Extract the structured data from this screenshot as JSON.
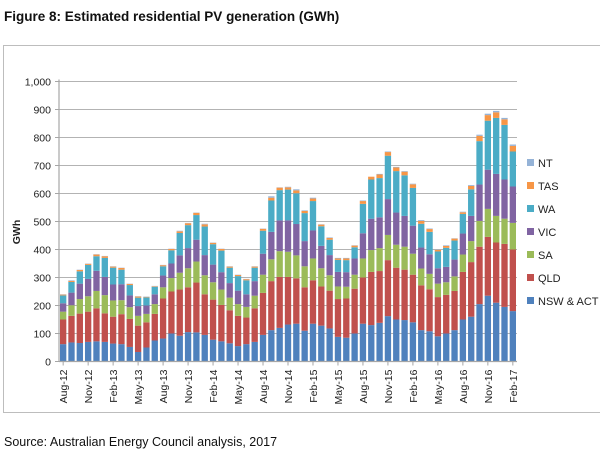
{
  "figure_title": "Figure 8: Estimated residential PV generation (GWh)",
  "source": "Source: Australian Energy Council analysis, 2017",
  "chart_data": {
    "type": "bar",
    "stacked": true,
    "title": "Figure 8: Estimated residential PV generation (GWh)",
    "xlabel": "",
    "ylabel": "GWh",
    "ylim": [
      0,
      1000
    ],
    "yticks": [
      0,
      100,
      200,
      300,
      400,
      500,
      600,
      700,
      800,
      900,
      1000
    ],
    "ytick_labels": [
      "0",
      "100",
      "200",
      "300",
      "400",
      "500",
      "600",
      "700",
      "800",
      "900",
      "1,000"
    ],
    "grid": true,
    "legend_position": "right",
    "categories": [
      "Aug-12",
      "Sep-12",
      "Oct-12",
      "Nov-12",
      "Dec-12",
      "Jan-13",
      "Feb-13",
      "Mar-13",
      "Apr-13",
      "May-13",
      "Jun-13",
      "Jul-13",
      "Aug-13",
      "Sep-13",
      "Oct-13",
      "Nov-13",
      "Dec-13",
      "Jan-14",
      "Feb-14",
      "Mar-14",
      "Apr-14",
      "May-14",
      "Jun-14",
      "Jul-14",
      "Aug-14",
      "Sep-14",
      "Oct-14",
      "Nov-14",
      "Dec-14",
      "Jan-15",
      "Feb-15",
      "Mar-15",
      "Apr-15",
      "May-15",
      "Jun-15",
      "Jul-15",
      "Aug-15",
      "Sep-15",
      "Oct-15",
      "Nov-15",
      "Dec-15",
      "Jan-16",
      "Feb-16",
      "Mar-16",
      "Apr-16",
      "May-16",
      "Jun-16",
      "Jul-16",
      "Aug-16",
      "Sep-16",
      "Oct-16",
      "Nov-16",
      "Dec-16",
      "Jan-17",
      "Feb-17"
    ],
    "xtick_labels": [
      "Aug-12",
      "Nov-12",
      "Feb-13",
      "May-13",
      "Aug-13",
      "Nov-13",
      "Feb-14",
      "May-14",
      "Aug-14",
      "Nov-14",
      "Feb-15",
      "May-15",
      "Aug-15",
      "Nov-15",
      "Feb-16",
      "May-16",
      "Aug-16",
      "Nov-16",
      "Feb-17"
    ],
    "series": [
      {
        "name": "NSW & ACT",
        "color": "#4f81bd",
        "values": [
          62,
          68,
          66,
          70,
          72,
          70,
          64,
          62,
          52,
          34,
          50,
          75,
          82,
          100,
          92,
          105,
          104,
          95,
          78,
          72,
          65,
          55,
          62,
          70,
          95,
          112,
          120,
          132,
          135,
          110,
          135,
          128,
          118,
          88,
          85,
          100,
          135,
          130,
          138,
          162,
          150,
          148,
          140,
          112,
          108,
          90,
          100,
          112,
          150,
          160,
          205,
          235,
          210,
          195,
          180
        ]
      },
      {
        "name": "QLD",
        "color": "#c0504d",
        "values": [
          88,
          95,
          105,
          108,
          118,
          102,
          96,
          107,
          100,
          94,
          90,
          95,
          143,
          150,
          165,
          160,
          178,
          145,
          143,
          130,
          118,
          108,
          95,
          120,
          150,
          175,
          182,
          170,
          162,
          155,
          155,
          140,
          135,
          135,
          140,
          160,
          165,
          190,
          185,
          200,
          185,
          180,
          170,
          160,
          150,
          140,
          138,
          140,
          170,
          195,
          205,
          210,
          215,
          225,
          220
        ]
      },
      {
        "name": "SA",
        "color": "#9bbb59",
        "values": [
          28,
          38,
          52,
          55,
          62,
          65,
          58,
          50,
          42,
          35,
          30,
          35,
          40,
          48,
          60,
          68,
          75,
          68,
          62,
          55,
          45,
          42,
          38,
          45,
          65,
          78,
          92,
          90,
          82,
          75,
          78,
          65,
          55,
          45,
          42,
          50,
          68,
          78,
          82,
          90,
          82,
          82,
          75,
          60,
          55,
          48,
          45,
          52,
          62,
          75,
          92,
          100,
          95,
          90,
          95
        ]
      },
      {
        "name": "VIC",
        "color": "#8064a2",
        "values": [
          30,
          45,
          55,
          62,
          72,
          65,
          57,
          57,
          42,
          35,
          30,
          35,
          42,
          52,
          62,
          72,
          78,
          72,
          63,
          62,
          52,
          48,
          45,
          52,
          75,
          98,
          110,
          112,
          112,
          90,
          100,
          80,
          72,
          52,
          52,
          58,
          90,
          112,
          110,
          128,
          115,
          110,
          100,
          75,
          70,
          55,
          55,
          60,
          75,
          90,
          130,
          140,
          150,
          140,
          130
        ]
      },
      {
        "name": "WA",
        "color": "#4bacc6",
        "values": [
          28,
          38,
          44,
          50,
          52,
          68,
          60,
          52,
          37,
          30,
          29,
          27,
          33,
          47,
          80,
          82,
          88,
          102,
          73,
          77,
          55,
          52,
          50,
          48,
          82,
          112,
          108,
          110,
          110,
          100,
          105,
          70,
          55,
          43,
          43,
          40,
          105,
          140,
          140,
          155,
          148,
          145,
          135,
          85,
          80,
          60,
          68,
          68,
          70,
          95,
          155,
          175,
          200,
          195,
          125
        ]
      },
      {
        "name": "TAS",
        "color": "#f79646",
        "values": [
          3,
          4,
          5,
          4,
          6,
          6,
          4,
          6,
          4,
          4,
          2,
          2,
          4,
          5,
          6,
          7,
          8,
          8,
          5,
          6,
          4,
          4,
          4,
          4,
          7,
          10,
          9,
          8,
          10,
          8,
          9,
          6,
          6,
          5,
          6,
          6,
          10,
          10,
          13,
          13,
          13,
          13,
          13,
          10,
          10,
          6,
          7,
          7,
          6,
          12,
          19,
          20,
          20,
          20,
          20
        ]
      },
      {
        "name": "NT",
        "color": "#95b3d7",
        "values": [
          1,
          2,
          1,
          1,
          1,
          1,
          1,
          1,
          1,
          1,
          1,
          1,
          1,
          1,
          2,
          1,
          1,
          2,
          1,
          1,
          1,
          1,
          1,
          1,
          1,
          5,
          1,
          2,
          4,
          2,
          3,
          1,
          2,
          2,
          2,
          1,
          2,
          0,
          2,
          2,
          2,
          2,
          2,
          3,
          2,
          1,
          2,
          1,
          2,
          3,
          4,
          5,
          5,
          5,
          5
        ]
      }
    ]
  }
}
